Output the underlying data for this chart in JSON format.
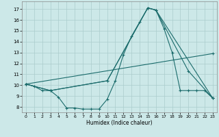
{
  "xlabel": "Humidex (Indice chaleur)",
  "bg_color": "#cce8e8",
  "grid_color": "#aacccc",
  "line_color": "#1a6b6b",
  "xlim": [
    -0.5,
    23.5
  ],
  "ylim": [
    7.5,
    17.7
  ],
  "xticks": [
    0,
    1,
    2,
    3,
    4,
    5,
    6,
    7,
    8,
    9,
    10,
    11,
    12,
    13,
    14,
    15,
    16,
    17,
    18,
    19,
    20,
    21,
    22,
    23
  ],
  "yticks": [
    8,
    9,
    10,
    11,
    12,
    13,
    14,
    15,
    16,
    17
  ],
  "line1_x": [
    0,
    1,
    2,
    3,
    4,
    5,
    6,
    7,
    8,
    9,
    10,
    11,
    12,
    13,
    14,
    15,
    16,
    17,
    18,
    19,
    20,
    21,
    22,
    23
  ],
  "line1_y": [
    10.1,
    9.9,
    9.5,
    9.5,
    8.9,
    7.9,
    7.9,
    7.8,
    7.8,
    7.8,
    8.7,
    10.4,
    12.8,
    14.5,
    15.8,
    17.1,
    16.9,
    15.2,
    13.0,
    9.5,
    9.5,
    9.5,
    9.5,
    8.8
  ],
  "line2_x": [
    0,
    3,
    10,
    15,
    16,
    20,
    23
  ],
  "line2_y": [
    10.1,
    9.5,
    10.4,
    17.1,
    16.9,
    11.3,
    8.8
  ],
  "line3_x": [
    0,
    3,
    10,
    15,
    16,
    23
  ],
  "line3_y": [
    10.1,
    9.5,
    10.4,
    17.1,
    16.9,
    8.8
  ],
  "line4_x": [
    0,
    23
  ],
  "line4_y": [
    10.1,
    12.9
  ]
}
